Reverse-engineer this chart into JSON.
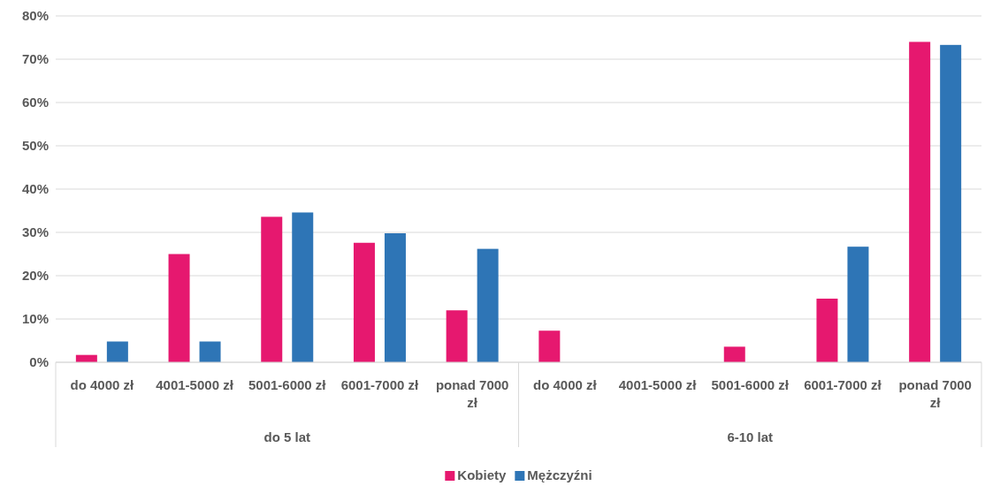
{
  "chart_data": {
    "type": "bar",
    "categories": [
      "do 4000 zł",
      "4001-5000 zł",
      "5001-6000 zł",
      "6001-7000 zł",
      "ponad 7000 zł",
      "do 4000 zł",
      "4001-5000 zł",
      "5001-6000 zł",
      "6001-7000 zł",
      "ponad 7000 zł"
    ],
    "series": [
      {
        "name": "Kobiety",
        "color": "#e6186f",
        "values": [
          1.7,
          25,
          33.6,
          27.6,
          12,
          7.3,
          0,
          3.6,
          14.7,
          74
        ]
      },
      {
        "name": "Mężczyźni",
        "color": "#2e75b6",
        "values": [
          4.8,
          4.8,
          34.6,
          29.8,
          26.2,
          0,
          0,
          0,
          26.7,
          73.3
        ]
      }
    ],
    "ylim": [
      0,
      80
    ],
    "yticks": [
      {
        "value": 0,
        "label": "0%"
      },
      {
        "value": 10,
        "label": "10%"
      },
      {
        "value": 20,
        "label": "20%"
      },
      {
        "value": 30,
        "label": "30%"
      },
      {
        "value": 40,
        "label": "40%"
      },
      {
        "value": 50,
        "label": "50%"
      },
      {
        "value": 60,
        "label": "60%"
      },
      {
        "value": 70,
        "label": "70%"
      },
      {
        "value": 80,
        "label": "80%"
      }
    ],
    "annotations": [
      "do 5 lat",
      "6-10 lat"
    ],
    "grid": "y",
    "legend": "bottom"
  }
}
